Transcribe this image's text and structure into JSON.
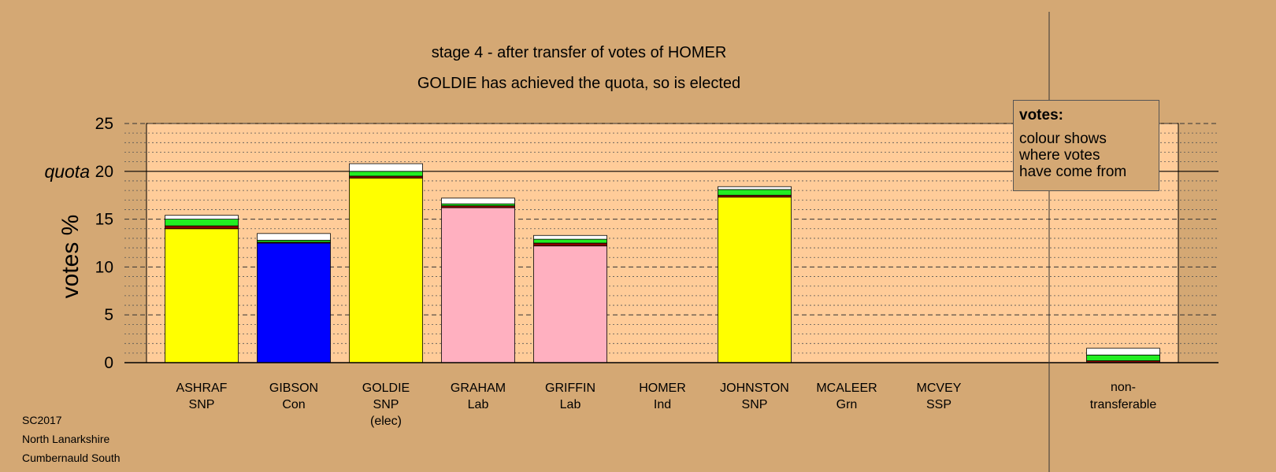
{
  "chart_data": {
    "type": "bar",
    "title": "stage 4 - after transfer of votes of HOMER",
    "subtitle": "GOLDIE has achieved the quota, so is elected",
    "ylabel": "votes %",
    "ylim": [
      0,
      25
    ],
    "yticks": [
      "0",
      "5",
      "10",
      "15",
      "20",
      "25"
    ],
    "quota_label": "quota",
    "quota_value": 20,
    "categories": [
      {
        "name": "ASHRAF",
        "party": "SNP",
        "note": ""
      },
      {
        "name": "GIBSON",
        "party": "Con",
        "note": ""
      },
      {
        "name": "GOLDIE",
        "party": "SNP",
        "note": "(elec)"
      },
      {
        "name": "GRAHAM",
        "party": "Lab",
        "note": ""
      },
      {
        "name": "GRIFFIN",
        "party": "Lab",
        "note": ""
      },
      {
        "name": "HOMER",
        "party": "Ind",
        "note": ""
      },
      {
        "name": "JOHNSTON",
        "party": "SNP",
        "note": ""
      },
      {
        "name": "MCALEER",
        "party": "Grn",
        "note": ""
      },
      {
        "name": "MCVEY",
        "party": "SSP",
        "note": ""
      }
    ],
    "nontransferable": {
      "label1": "non-",
      "label2": "transferable"
    },
    "segments": [
      [
        {
          "color": "#ffff00",
          "value": 14.0
        },
        {
          "color": "#8b0000",
          "value": 0.3
        },
        {
          "color": "#22ee22",
          "value": 0.7
        },
        {
          "color": "#ffffff",
          "value": 0.4
        }
      ],
      [
        {
          "color": "#0000ff",
          "value": 12.5
        },
        {
          "color": "#8b0000",
          "value": 0.1
        },
        {
          "color": "#22ee22",
          "value": 0.2
        },
        {
          "color": "#ffffff",
          "value": 0.7
        }
      ],
      [
        {
          "color": "#ffff00",
          "value": 19.3
        },
        {
          "color": "#8b0000",
          "value": 0.2
        },
        {
          "color": "#22ee22",
          "value": 0.5
        },
        {
          "color": "#ffffff",
          "value": 0.8
        }
      ],
      [
        {
          "color": "#ffb0c0",
          "value": 16.2
        },
        {
          "color": "#8b0000",
          "value": 0.2
        },
        {
          "color": "#22ee22",
          "value": 0.2
        },
        {
          "color": "#ffffff",
          "value": 0.6
        }
      ],
      [
        {
          "color": "#ffb0c0",
          "value": 12.2
        },
        {
          "color": "#8b0000",
          "value": 0.3
        },
        {
          "color": "#22ee22",
          "value": 0.4
        },
        {
          "color": "#ffffff",
          "value": 0.4
        }
      ],
      [],
      [
        {
          "color": "#ffff00",
          "value": 17.3
        },
        {
          "color": "#8b0000",
          "value": 0.2
        },
        {
          "color": "#22ee22",
          "value": 0.6
        },
        {
          "color": "#ffffff",
          "value": 0.3
        }
      ],
      [],
      []
    ],
    "nontransferable_segments": [
      {
        "color": "#8b0000",
        "value": 0.2
      },
      {
        "color": "#22ee22",
        "value": 0.6
      },
      {
        "color": "#ffffff",
        "value": 0.7
      }
    ],
    "colors": {
      "background": "#d4a874",
      "plot_area": "#ffcc99",
      "snp": "#ffff00",
      "con": "#0000ff",
      "lab": "#ffb0c0"
    }
  },
  "legend": {
    "title": "votes:",
    "line1": "colour shows",
    "line2": "where votes",
    "line3": "have come from"
  },
  "footer": {
    "line1": "SC2017",
    "line2": "North Lanarkshire",
    "line3": "Cumbernauld South"
  }
}
